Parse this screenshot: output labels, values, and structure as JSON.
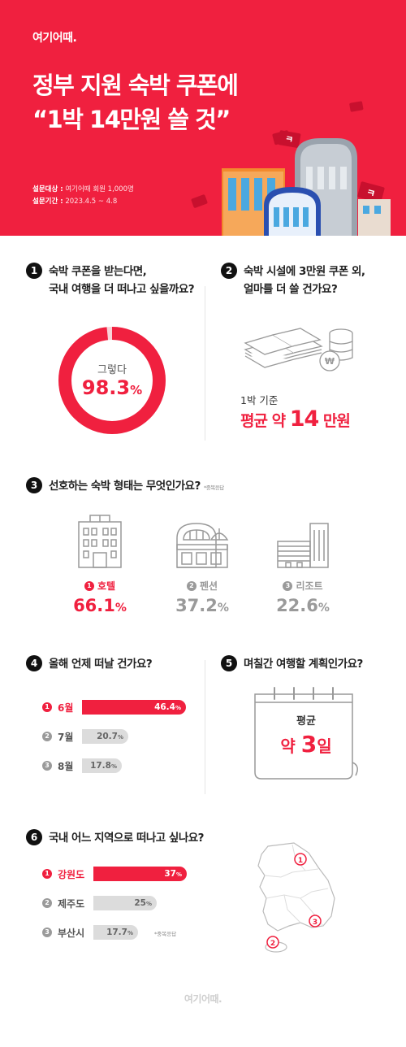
{
  "header": {
    "logo": "여기어때.",
    "title_line1": "정부 지원 숙박 쿠폰에",
    "title_line2": "“1박 14만원 쓸 것”",
    "survey_target_label": "설문대상 :",
    "survey_target": "여기어때 회원 1,000명",
    "survey_period_label": "설문기간 :",
    "survey_period": "2023.4.5 ~ 4.8"
  },
  "q1": {
    "number": "1",
    "line1": "숙박 쿠폰을 받는다면,",
    "line2": "국내 여행을 더 떠나고 싶을까요?",
    "answer": "그렇다",
    "value": "98.3",
    "unit": "%",
    "percent": 98.3,
    "colors": {
      "fill": "#f0203f",
      "rest": "#f8d3d8"
    }
  },
  "q2": {
    "number": "2",
    "line1": "숙박 시설에 3만원 쿠폰 외,",
    "line2": "얼마를 더 쓸 건가요?",
    "basis": "1박 기준",
    "avg_prefix": "평균 약",
    "avg_value": "14",
    "avg_unit": "만원",
    "icon": "money-stack-icon"
  },
  "q3": {
    "number": "3",
    "question": "선호하는 숙박 형태는 무엇인가요?",
    "note": "*중복응답",
    "items": [
      {
        "rank": "1",
        "label": "호텔",
        "value": "66.1",
        "unit": "%",
        "icon": "hotel-building-icon",
        "color": "#f0203f"
      },
      {
        "rank": "2",
        "label": "펜션",
        "value": "37.2",
        "unit": "%",
        "icon": "pension-house-icon",
        "color": "#9a9a9a"
      },
      {
        "rank": "3",
        "label": "리조트",
        "value": "22.6",
        "unit": "%",
        "icon": "resort-building-icon",
        "color": "#9a9a9a"
      }
    ]
  },
  "q4": {
    "number": "4",
    "question": "올해 언제 떠날 건가요?",
    "rows": [
      {
        "rank": "1",
        "label": "6월",
        "value": "46.4",
        "unit": "%",
        "percent": 46.4
      },
      {
        "rank": "2",
        "label": "7월",
        "value": "20.7",
        "unit": "%",
        "percent": 20.7
      },
      {
        "rank": "3",
        "label": "8월",
        "value": "17.8",
        "unit": "%",
        "percent": 17.8
      }
    ]
  },
  "q5": {
    "number": "5",
    "question": "며칠간 여행할 계획인가요?",
    "avg": "평균",
    "prefix": "약",
    "value": "3",
    "unit": "일",
    "icon": "calendar-icon"
  },
  "q6": {
    "number": "6",
    "question": "국내 어느 지역으로 떠나고 싶나요?",
    "note": "*중복응답",
    "rows": [
      {
        "rank": "1",
        "label": "강원도",
        "value": "37",
        "unit": "%",
        "percent": 37
      },
      {
        "rank": "2",
        "label": "제주도",
        "value": "25",
        "unit": "%",
        "percent": 25
      },
      {
        "rank": "3",
        "label": "부산시",
        "value": "17.7",
        "unit": "%",
        "percent": 17.7
      }
    ],
    "map_markers": [
      "1",
      "2",
      "3"
    ],
    "icon": "korea-map-icon"
  },
  "colors": {
    "accent": "#f0203f",
    "grey_bar": "#dcdcdc",
    "grey_text": "#9a9a9a"
  },
  "footer": {
    "logo": "여기어때."
  }
}
